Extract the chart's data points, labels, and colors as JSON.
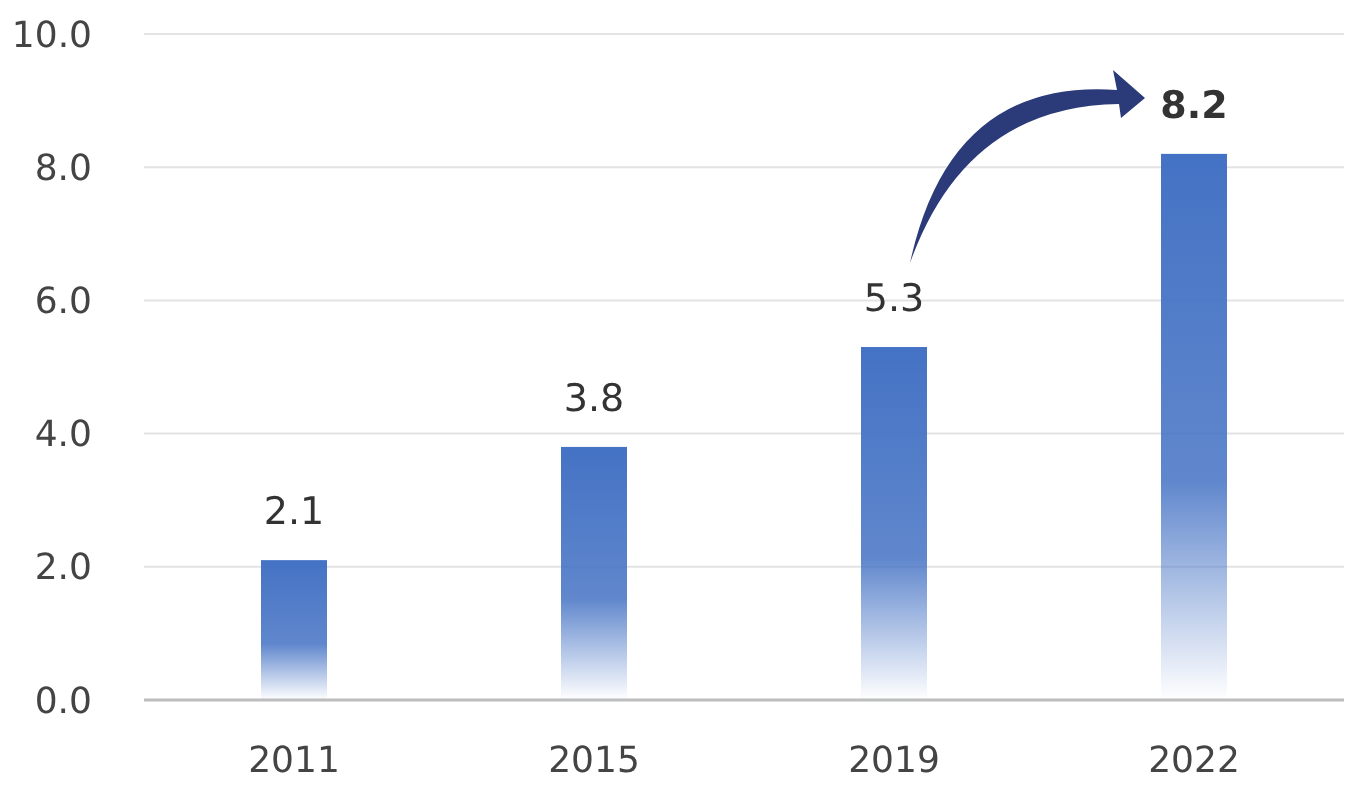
{
  "chart_data": {
    "type": "bar",
    "categories": [
      "2011",
      "2015",
      "2019",
      "2022"
    ],
    "values": [
      2.1,
      3.8,
      5.3,
      8.2
    ],
    "color": "#4472c4",
    "ylim": [
      0,
      10
    ],
    "yticks": [
      {
        "value": 0,
        "label": "0.0"
      },
      {
        "value": 2,
        "label": "2.0"
      },
      {
        "value": 4,
        "label": "4.0"
      },
      {
        "value": 6,
        "label": "6.0"
      },
      {
        "value": 8,
        "label": "8.0"
      },
      {
        "value": 10,
        "label": "10.0"
      }
    ],
    "grid": "y",
    "data_labels": true
  }
}
